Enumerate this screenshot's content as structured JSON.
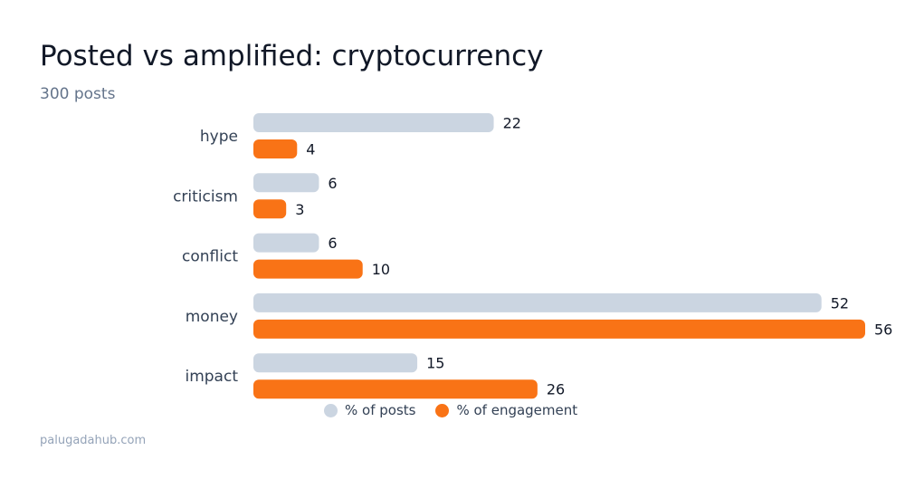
{
  "title": "Posted vs amplified: cryptocurrency",
  "subtitle": "300 posts",
  "footer": "palugadahub.com",
  "chart_data": {
    "type": "bar",
    "orientation": "horizontal",
    "categories": [
      "hype",
      "criticism",
      "conflict",
      "money",
      "impact"
    ],
    "series": [
      {
        "name": "% of posts",
        "values": [
          22,
          6,
          6,
          52,
          15
        ],
        "color": "#cbd5e1"
      },
      {
        "name": "% of engagement",
        "values": [
          4,
          3,
          10,
          56,
          26
        ],
        "color": "#f97316"
      }
    ],
    "xlim": [
      0,
      56
    ],
    "grid": false,
    "legend_position": "bottom"
  }
}
